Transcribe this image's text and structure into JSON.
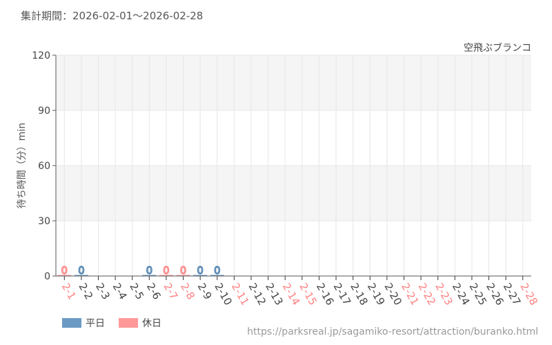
{
  "header": {
    "period": "集計期間：2026-02-01～2026-02-28"
  },
  "footer": {
    "url": "https://parksreal.jp/sagamiko-resort/attraction/buranko.html"
  },
  "colors": {
    "weekday": "#6a9ac4",
    "holiday": "#ff9999",
    "weekday_text": "#4a7fb0",
    "holiday_text": "#ff8080"
  },
  "legend": {
    "weekday": "平日",
    "holiday": "休日"
  },
  "chart_data": {
    "type": "bar",
    "title": "空飛ぶブランコ",
    "xlabel": "",
    "ylabel": "待ち時間（分）min",
    "ylim": [
      0,
      120
    ],
    "yticks": [
      0,
      30,
      60,
      90,
      120
    ],
    "categories": [
      "2-1",
      "2-2",
      "2-3",
      "2-4",
      "2-5",
      "2-6",
      "2-7",
      "2-8",
      "2-9",
      "2-10",
      "2-11",
      "2-12",
      "2-13",
      "2-14",
      "2-15",
      "2-16",
      "2-17",
      "2-18",
      "2-19",
      "2-20",
      "2-21",
      "2-22",
      "2-23",
      "2-24",
      "2-25",
      "2-26",
      "2-27",
      "2-28"
    ],
    "holiday": [
      true,
      false,
      false,
      false,
      false,
      false,
      true,
      true,
      false,
      false,
      true,
      false,
      false,
      true,
      true,
      false,
      false,
      false,
      false,
      false,
      true,
      true,
      true,
      false,
      false,
      false,
      false,
      true
    ],
    "values": [
      0,
      0,
      null,
      null,
      null,
      0,
      0,
      0,
      0,
      0,
      null,
      null,
      null,
      null,
      null,
      null,
      null,
      null,
      null,
      null,
      null,
      null,
      null,
      null,
      null,
      null,
      null,
      null
    ]
  }
}
